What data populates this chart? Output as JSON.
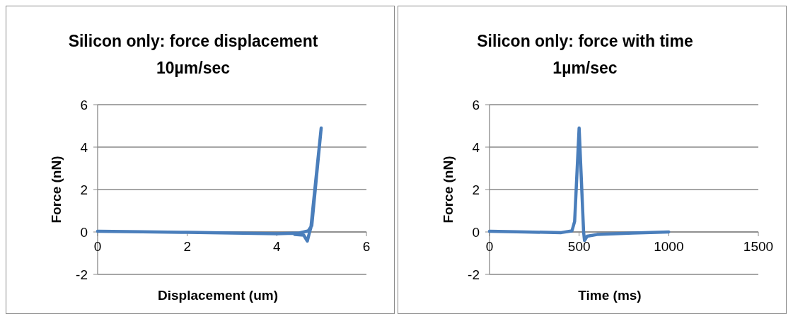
{
  "chart_data": [
    {
      "type": "line",
      "title": "Silicon only: force displacement\n10µm/sec",
      "xlabel": "Displacement (um)",
      "ylabel": "Force (nN)",
      "xlim": [
        0,
        6
      ],
      "xticks": [
        0,
        2,
        4,
        6
      ],
      "ylim": [
        -2,
        6
      ],
      "yticks": [
        -2,
        0,
        2,
        4,
        6
      ],
      "grid": "y",
      "marker": "none",
      "series": [
        {
          "color": "#4a7ebb",
          "x": [
            0,
            1,
            2,
            3,
            4,
            4.5,
            4.7,
            4.78,
            4.99,
            4.76,
            4.72,
            4.68,
            4.6,
            4.4
          ],
          "values": [
            0.03,
            0.01,
            -0.02,
            -0.05,
            -0.08,
            -0.05,
            0.05,
            0.3,
            4.9,
            0.2,
            -0.1,
            -0.43,
            -0.15,
            -0.12
          ]
        }
      ]
    },
    {
      "type": "line",
      "title": "Silicon only: force with time\n1µm/sec",
      "xlabel": "Time (ms)",
      "ylabel": "Force (nN)",
      "xlim": [
        0,
        1500
      ],
      "xticks": [
        0,
        500,
        1000,
        1500
      ],
      "ylim": [
        -2,
        6
      ],
      "yticks": [
        -2,
        0,
        2,
        4,
        6
      ],
      "grid": "y",
      "marker": "none",
      "series": [
        {
          "color": "#4a7ebb",
          "x": [
            0,
            200,
            400,
            460,
            475,
            500,
            525,
            530,
            545,
            600,
            800,
            1000
          ],
          "values": [
            0.03,
            0,
            -0.03,
            0.05,
            0.5,
            4.9,
            0,
            -0.4,
            -0.2,
            -0.12,
            -0.05,
            0
          ]
        }
      ]
    }
  ]
}
